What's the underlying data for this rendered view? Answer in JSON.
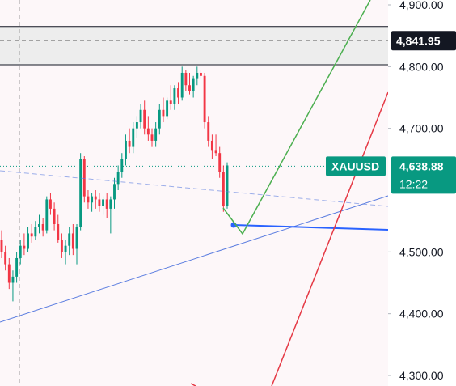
{
  "chart_data": {
    "type": "candlestick",
    "symbol": "XAUUSD",
    "y_range": [
      4290,
      4905
    ],
    "y_ticks": [
      {
        "value": 4900,
        "label": "4,900.00"
      },
      {
        "value": 4800,
        "label": "4,800.00"
      },
      {
        "value": 4700,
        "label": "4,700.00"
      },
      {
        "value": 4500,
        "label": "4,500.00"
      },
      {
        "value": 4400,
        "label": "4,400.00"
      },
      {
        "value": 4300,
        "label": "4,300.00"
      }
    ],
    "selected_price": {
      "value": 4841.95,
      "label": "4,841.95"
    },
    "last_price": {
      "value": 4638.88,
      "label": "4,638.88",
      "countdown": "12:22"
    },
    "shaded_zone": {
      "high": 4865,
      "low": 4803
    },
    "colors": {
      "up": "#089981",
      "down": "#f23645",
      "price_tag": "#089981",
      "selected_tag": "#131722",
      "trend_line": "#5b7de0",
      "horizontal_line": "#2962ff",
      "projection_green": "#4caf50",
      "projection_red": "#e53945",
      "zone_fill": "#ededed"
    },
    "candles": [
      [
        4520,
        4535,
        4490,
        4500
      ],
      [
        4500,
        4510,
        4470,
        4480
      ],
      [
        4480,
        4490,
        4440,
        4450
      ],
      [
        4450,
        4470,
        4420,
        4460
      ],
      [
        4460,
        4500,
        4450,
        4490
      ],
      [
        4490,
        4520,
        4480,
        4510
      ],
      [
        4510,
        4530,
        4495,
        4505
      ],
      [
        4505,
        4540,
        4500,
        4530
      ],
      [
        4530,
        4545,
        4515,
        4525
      ],
      [
        4525,
        4550,
        4520,
        4540
      ],
      [
        4540,
        4560,
        4530,
        4545
      ],
      [
        4545,
        4555,
        4525,
        4535
      ],
      [
        4535,
        4590,
        4530,
        4585
      ],
      [
        4585,
        4595,
        4560,
        4570
      ],
      [
        4570,
        4580,
        4535,
        4545
      ],
      [
        4545,
        4560,
        4515,
        4520
      ],
      [
        4520,
        4530,
        4490,
        4500
      ],
      [
        4500,
        4520,
        4480,
        4510
      ],
      [
        4510,
        4540,
        4495,
        4530
      ],
      [
        4530,
        4545,
        4495,
        4505
      ],
      [
        4505,
        4545,
        4480,
        4540
      ],
      [
        4540,
        4660,
        4535,
        4650
      ],
      [
        4650,
        4655,
        4580,
        4590
      ],
      [
        4590,
        4600,
        4570,
        4580
      ],
      [
        4580,
        4595,
        4565,
        4590
      ],
      [
        4590,
        4600,
        4570,
        4585
      ],
      [
        4585,
        4595,
        4565,
        4575
      ],
      [
        4575,
        4590,
        4560,
        4585
      ],
      [
        4585,
        4595,
        4555,
        4570
      ],
      [
        4570,
        4590,
        4530,
        4585
      ],
      [
        4585,
        4620,
        4570,
        4610
      ],
      [
        4610,
        4640,
        4600,
        4630
      ],
      [
        4630,
        4660,
        4620,
        4650
      ],
      [
        4650,
        4690,
        4640,
        4680
      ],
      [
        4680,
        4700,
        4660,
        4670
      ],
      [
        4670,
        4710,
        4660,
        4700
      ],
      [
        4700,
        4720,
        4685,
        4710
      ],
      [
        4710,
        4740,
        4700,
        4730
      ],
      [
        4730,
        4745,
        4690,
        4700
      ],
      [
        4700,
        4720,
        4680,
        4690
      ],
      [
        4690,
        4700,
        4670,
        4680
      ],
      [
        4680,
        4710,
        4670,
        4700
      ],
      [
        4700,
        4740,
        4690,
        4730
      ],
      [
        4730,
        4750,
        4710,
        4720
      ],
      [
        4720,
        4750,
        4715,
        4745
      ],
      [
        4745,
        4770,
        4730,
        4740
      ],
      [
        4740,
        4770,
        4730,
        4765
      ],
      [
        4765,
        4775,
        4740,
        4750
      ],
      [
        4750,
        4800,
        4745,
        4790
      ],
      [
        4790,
        4795,
        4760,
        4770
      ],
      [
        4770,
        4790,
        4755,
        4760
      ],
      [
        4760,
        4785,
        4750,
        4780
      ],
      [
        4780,
        4800,
        4770,
        4790
      ],
      [
        4790,
        4795,
        4780,
        4785
      ],
      [
        4785,
        4790,
        4700,
        4710
      ],
      [
        4710,
        4720,
        4670,
        4680
      ],
      [
        4680,
        4690,
        4650,
        4665
      ],
      [
        4665,
        4690,
        4655,
        4660
      ],
      [
        4660,
        4670,
        4620,
        4630
      ],
      [
        4630,
        4640,
        4565,
        4575
      ],
      [
        4575,
        4645,
        4570,
        4640
      ]
    ]
  }
}
